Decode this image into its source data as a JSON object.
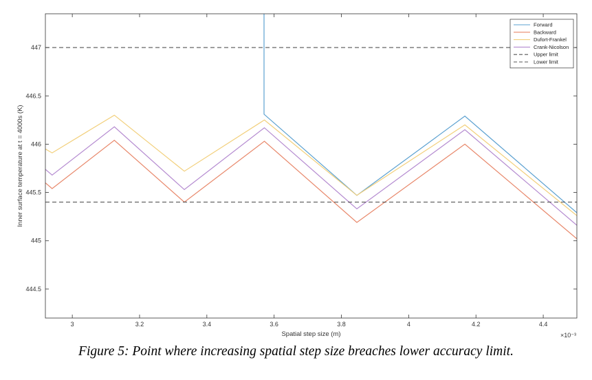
{
  "caption": "Figure 5: Point where increasing spatial step size breaches lower accuracy limit.",
  "chart_data": {
    "type": "line",
    "xlabel": "Spatial step size (m)",
    "ylabel": "Inner surface temperature at t = 4000s (K)",
    "x_exponent_label": "×10⁻³",
    "xlim": [
      2.92,
      4.5
    ],
    "ylim": [
      444.2,
      447.35
    ],
    "x_ticks": [
      3,
      3.2,
      3.4,
      3.6,
      3.8,
      4,
      4.2,
      4.4
    ],
    "x_tick_labels": [
      "3",
      "3.2",
      "3.4",
      "3.6",
      "3.8",
      "4",
      "4.2",
      "4.4"
    ],
    "y_ticks": [
      444.5,
      445,
      445.5,
      446,
      446.5,
      447
    ],
    "y_tick_labels": [
      "444.5",
      "445",
      "445.5",
      "446",
      "446.5",
      "447"
    ],
    "grid": false,
    "legend_position": "top-right",
    "series": [
      {
        "name": "Forward",
        "color": "#5aa0d0",
        "dash": "solid",
        "x": [
          3.57,
          3.57,
          3.846,
          4.167,
          4.5
        ],
        "y": [
          447.35,
          446.31,
          445.47,
          446.29,
          445.29
        ]
      },
      {
        "name": "Backward",
        "color": "#e8876a",
        "dash": "solid",
        "x": [
          2.92,
          2.94,
          3.125,
          3.333,
          3.571,
          3.846,
          4.167,
          4.5
        ],
        "y": [
          445.6,
          445.54,
          446.04,
          445.4,
          446.03,
          445.19,
          446.0,
          445.02
        ]
      },
      {
        "name": "Dufort-Frankel",
        "color": "#f2cf7a",
        "dash": "solid",
        "x": [
          2.92,
          2.94,
          3.125,
          3.333,
          3.571,
          3.846,
          4.167,
          4.5
        ],
        "y": [
          445.95,
          445.91,
          446.3,
          445.72,
          446.25,
          445.47,
          446.2,
          445.26
        ]
      },
      {
        "name": "Crank-Nicolson",
        "color": "#b48ad0",
        "dash": "solid",
        "x": [
          2.92,
          2.94,
          3.125,
          3.333,
          3.571,
          3.846,
          4.167,
          4.5
        ],
        "y": [
          445.74,
          445.68,
          446.18,
          445.53,
          446.17,
          445.33,
          446.15,
          445.16
        ]
      },
      {
        "name": "Upper limit",
        "color": "#555555",
        "dash": "dashed",
        "x": [
          2.92,
          4.5
        ],
        "y": [
          447.0,
          447.0
        ]
      },
      {
        "name": "Lower limit",
        "color": "#555555",
        "dash": "dashed",
        "x": [
          2.92,
          4.5
        ],
        "y": [
          445.4,
          445.4
        ]
      }
    ]
  }
}
